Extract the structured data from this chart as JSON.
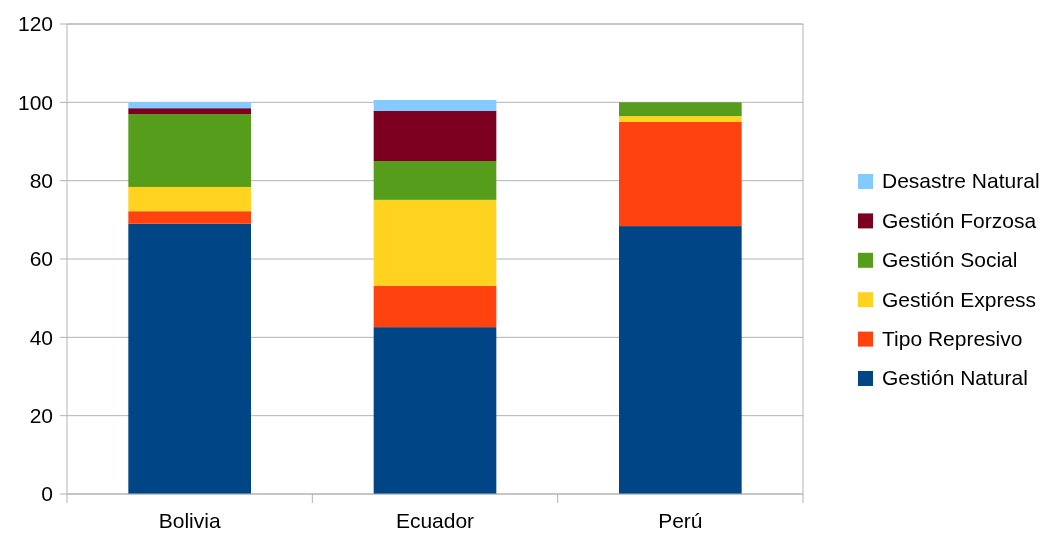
{
  "chart_data": {
    "type": "bar",
    "stacked": true,
    "categories": [
      "Bolivia",
      "Ecuador",
      "Perú"
    ],
    "series": [
      {
        "name": "Gestión Natural",
        "color": "#004586",
        "values": [
          69,
          42.6,
          68.4
        ]
      },
      {
        "name": "Tipo Represivo",
        "color": "#ff420e",
        "values": [
          3.2,
          10.5,
          26.6
        ]
      },
      {
        "name": "Gestión Express",
        "color": "#ffd320",
        "values": [
          6.2,
          22,
          1.5
        ]
      },
      {
        "name": "Gestión Social",
        "color": "#579d1c",
        "values": [
          18.6,
          9.9,
          3.5
        ]
      },
      {
        "name": "Gestión Forzosa",
        "color": "#7e0021",
        "values": [
          1.5,
          12.8,
          0
        ]
      },
      {
        "name": "Desastre Natural",
        "color": "#83caff",
        "values": [
          1.5,
          2.8,
          0
        ]
      }
    ],
    "ylim": [
      0,
      120
    ],
    "yticks": [
      0,
      20,
      40,
      60,
      80,
      100,
      120
    ],
    "grid": "y",
    "legend": "right"
  }
}
